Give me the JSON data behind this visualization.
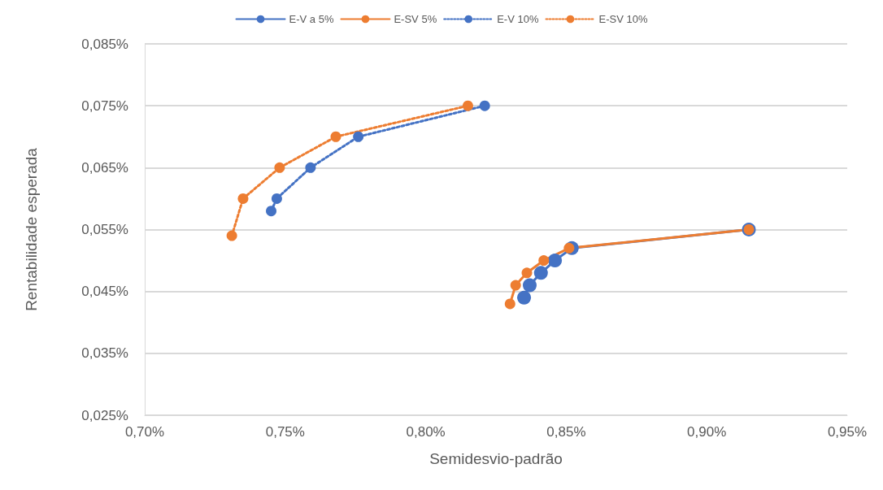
{
  "chart_data": {
    "type": "line",
    "xlabel": "Semidesvio-padrão",
    "ylabel": "Rentabilidade esperada",
    "xlim": [
      0.7,
      0.95
    ],
    "xticks": [
      {
        "value": 0.7,
        "label": "0,70%"
      },
      {
        "value": 0.75,
        "label": "0,75%"
      },
      {
        "value": 0.8,
        "label": "0,80%"
      },
      {
        "value": 0.85,
        "label": "0,85%"
      },
      {
        "value": 0.9,
        "label": "0,90%"
      },
      {
        "value": 0.95,
        "label": "0,95%"
      }
    ],
    "ylim": [
      0.025,
      0.085
    ],
    "yticks": [
      {
        "value": 0.025,
        "label": "0,025%"
      },
      {
        "value": 0.035,
        "label": "0,035%"
      },
      {
        "value": 0.045,
        "label": "0,045%"
      },
      {
        "value": 0.055,
        "label": "0,055%"
      },
      {
        "value": 0.065,
        "label": "0,065%"
      },
      {
        "value": 0.075,
        "label": "0,075%"
      },
      {
        "value": 0.085,
        "label": "0,085%"
      }
    ],
    "grid": "y",
    "legend": "top",
    "marker": "circle",
    "series": [
      {
        "name": "E-V a 5%",
        "color": "#4472c4",
        "line_style": "solid",
        "x": [
          0.835,
          0.837,
          0.841,
          0.846,
          0.852,
          0.915
        ],
        "values": [
          0.044,
          0.046,
          0.048,
          0.05,
          0.052,
          0.055
        ]
      },
      {
        "name": "E-SV 5%",
        "color": "#ed7d31",
        "line_style": "solid",
        "x": [
          0.83,
          0.832,
          0.836,
          0.842,
          0.851,
          0.915
        ],
        "values": [
          0.043,
          0.046,
          0.048,
          0.05,
          0.052,
          0.055
        ]
      },
      {
        "name": "E-V 10%",
        "color": "#4472c4",
        "line_style": "dotted",
        "x": [
          0.745,
          0.747,
          0.759,
          0.776,
          0.821
        ],
        "values": [
          0.058,
          0.06,
          0.065,
          0.07,
          0.075
        ]
      },
      {
        "name": "E-SV 10%",
        "color": "#ed7d31",
        "line_style": "dotted",
        "x": [
          0.731,
          0.735,
          0.748,
          0.768,
          0.815
        ],
        "values": [
          0.054,
          0.06,
          0.065,
          0.07,
          0.075
        ]
      }
    ]
  }
}
